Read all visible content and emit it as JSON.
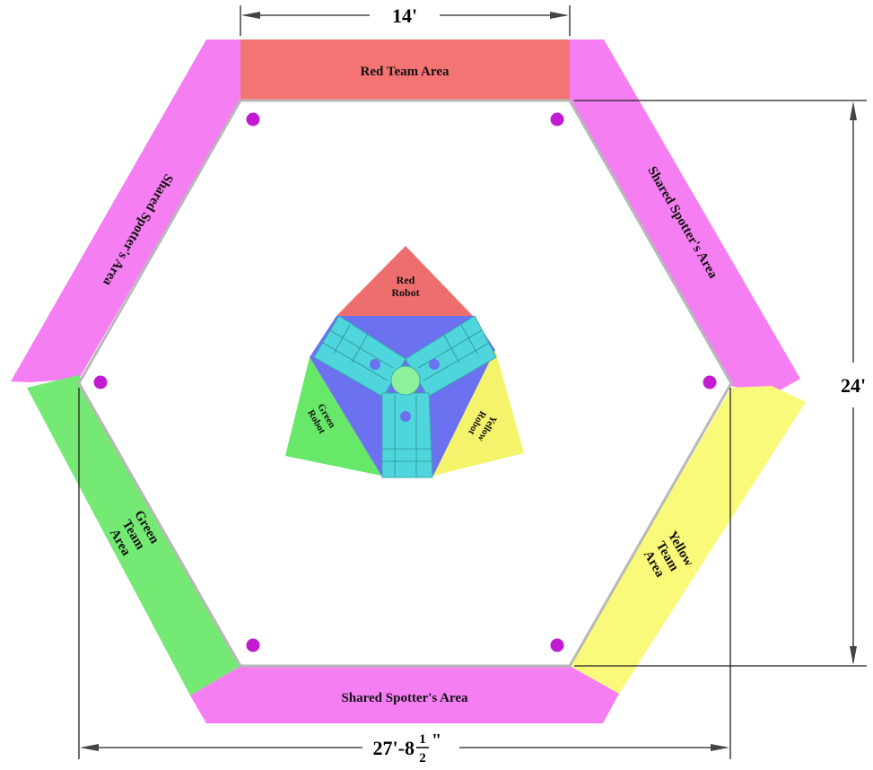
{
  "colors": {
    "red_team": "#f47474",
    "shared": "#f57ff2",
    "green_team": "#74ea74",
    "yellow_team": "#fafa7a",
    "field_border": "#b8b8b8",
    "post": "#c21bd2",
    "robot_red": "#ee6e6e",
    "robot_blue": "#6b71ef",
    "robot_green": "#68e868",
    "robot_yellow": "#f4f46c",
    "robot_frame": "#4ed6dc"
  },
  "areas": {
    "red_team": "Red Team Area",
    "shared_top_left": "Shared Spotter's Area",
    "shared_top_right": "Shared Spotter's Area",
    "shared_bottom": "Shared Spotter's Area",
    "green_team": [
      "Green",
      "Team",
      "Area"
    ],
    "yellow_team": [
      "Yellow",
      "Team",
      "Area"
    ]
  },
  "robots": {
    "red": [
      "Red",
      "Robot"
    ],
    "green": [
      "Green",
      "Robot"
    ],
    "yellow": [
      "Yellow",
      "Robot"
    ]
  },
  "dimensions": {
    "top": "14'",
    "right": "24'",
    "bottom_main": "27'-8",
    "bottom_frac_num": "1",
    "bottom_frac_den": "2",
    "bottom_unit": "\""
  }
}
